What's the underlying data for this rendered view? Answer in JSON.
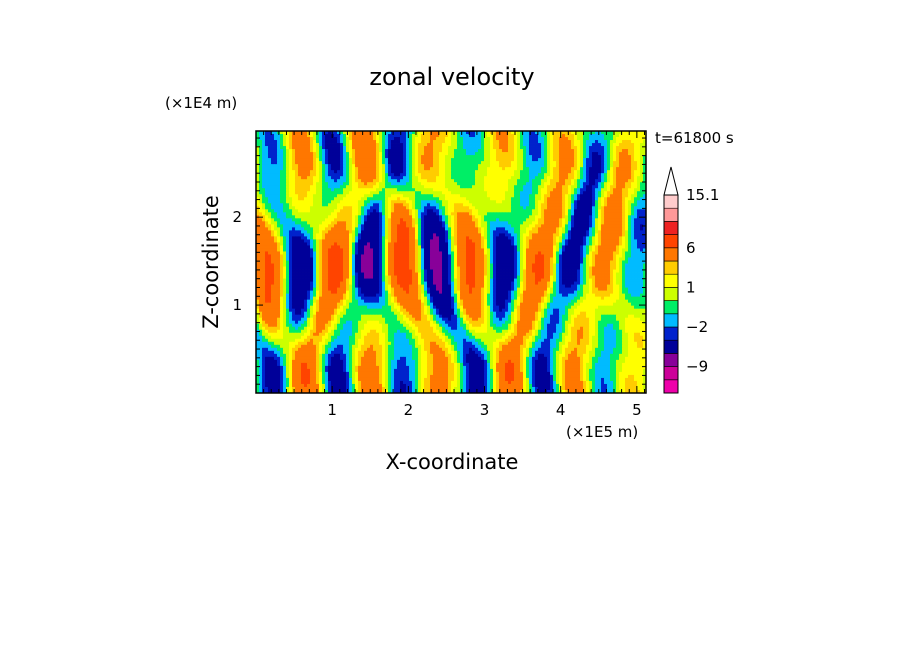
{
  "chart_data": {
    "type": "heatmap",
    "title": "zonal velocity",
    "xlabel": "X-coordinate",
    "ylabel": "Z-coordinate",
    "x_unit": "(×1E5 m)",
    "y_unit": "(×1E4 m)",
    "time_label": "t=61800 s",
    "xlim": [
      0,
      5.12
    ],
    "ylim": [
      0,
      2.98
    ],
    "x_ticks": [
      1,
      2,
      3,
      4,
      5
    ],
    "x_tick_labels": [
      "1",
      "2",
      "3",
      "4",
      "5"
    ],
    "y_ticks": [
      1,
      2
    ],
    "y_tick_labels": [
      "1",
      "2"
    ],
    "colorbar": {
      "levels": [
        -15,
        -12,
        -9,
        -6,
        -3,
        -2,
        -1,
        0,
        1,
        2,
        3,
        6,
        9,
        12,
        15.1
      ],
      "colors": [
        "#ee00aa",
        "#cc0099",
        "#880099",
        "#000099",
        "#0022cc",
        "#00bbff",
        "#00ee66",
        "#ccff00",
        "#ffff00",
        "#ffcc00",
        "#ff7700",
        "#ff4400",
        "#ee2222",
        "#ff9999",
        "#ffcccc"
      ],
      "labeled_values": [
        15.1,
        6,
        1,
        -2,
        -9
      ],
      "labels": [
        "15.1",
        "6",
        "1",
        "−2",
        "−9"
      ],
      "extend": "max"
    }
  }
}
